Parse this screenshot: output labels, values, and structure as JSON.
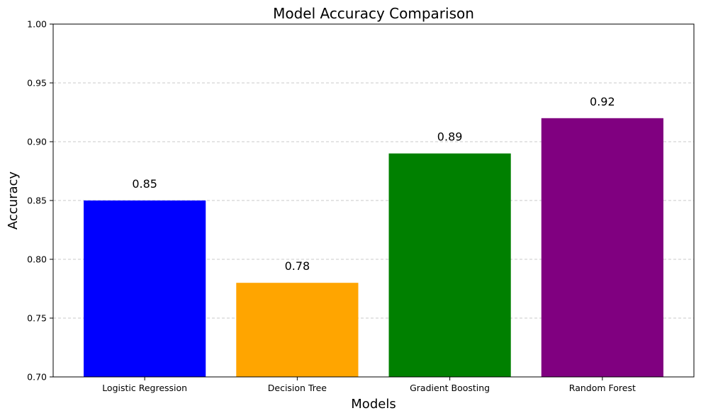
{
  "chart_data": {
    "type": "bar",
    "title": "Model Accuracy Comparison",
    "xlabel": "Models",
    "ylabel": "Accuracy",
    "categories": [
      "Logistic Regression",
      "Decision Tree",
      "Gradient Boosting",
      "Random Forest"
    ],
    "values": [
      0.85,
      0.78,
      0.89,
      0.92
    ],
    "value_labels": [
      "0.85",
      "0.78",
      "0.89",
      "0.92"
    ],
    "colors": [
      "#0000ff",
      "#ffa500",
      "#008000",
      "#800080"
    ],
    "ylim": [
      0.7,
      1.0
    ],
    "yticks": [
      0.7,
      0.75,
      0.8,
      0.85,
      0.9,
      0.95,
      1.0
    ],
    "ytick_labels": [
      "0.70",
      "0.75",
      "0.80",
      "0.85",
      "0.90",
      "0.95",
      "1.00"
    ],
    "grid": {
      "axis": "y",
      "style": "dashed",
      "color": "#c8c8c8"
    },
    "legend": "none"
  }
}
